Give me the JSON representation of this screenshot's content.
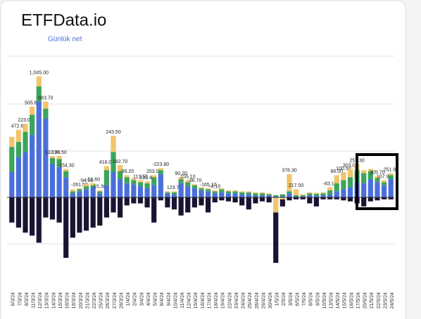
{
  "chart_data": {
    "type": "stacked_bar",
    "title": "ETFData.io",
    "subtitle": "Günlük net",
    "categories": [
      "6/3/24",
      "7/3/24",
      "8/3/24",
      "11/3/24",
      "12/3/24",
      "13/3/24",
      "14/3/24",
      "15/3/24",
      "18/3/24",
      "19/3/24",
      "20/3/24",
      "21/3/24",
      "22/3/24",
      "25/3/24",
      "26/3/24",
      "27/3/24",
      "28/3/24",
      "1/4/24",
      "2/4/24",
      "3/4/24",
      "4/4/24",
      "5/4/24",
      "8/4/24",
      "9/4/24",
      "10/4/24",
      "11/4/24",
      "12/4/24",
      "15/4/24",
      "16/4/24",
      "17/4/24",
      "18/4/24",
      "19/4/24",
      "22/4/24",
      "23/4/24",
      "24/4/24",
      "25/4/24",
      "26/4/24",
      "29/4/24",
      "30/4/24",
      "1/5/24",
      "2/5/24",
      "3/5/24",
      "6/5/24",
      "7/5/24",
      "8/5/24",
      "9/5/24",
      "10/5/24",
      "13/5/24",
      "14/5/24",
      "15/5/24",
      "16/5/24",
      "17/5/24",
      "20/5/24",
      "21/5/24",
      "22/5/24",
      "23/5/24",
      "24/5/24"
    ],
    "series": [
      {
        "color": "#4a6fdc",
        "values": [
          250,
          400,
          450,
          620,
          950,
          780,
          330,
          300,
          200,
          40,
          60,
          80,
          100,
          40,
          120,
          250,
          180,
          140,
          130,
          110,
          90,
          120,
          230,
          40,
          30,
          140,
          110,
          90,
          70,
          60,
          40,
          50,
          40,
          40,
          30,
          30,
          20,
          20,
          20,
          10,
          10,
          40,
          10,
          10,
          20,
          15,
          20,
          30,
          60,
          80,
          100,
          150,
          140,
          180,
          150,
          120,
          180
        ]
      },
      {
        "color": "#3aa55b",
        "values": [
          250,
          150,
          200,
          200,
          150,
          100,
          60,
          80,
          60,
          20,
          20,
          30,
          20,
          20,
          150,
          200,
          80,
          60,
          40,
          40,
          50,
          80,
          40,
          10,
          20,
          40,
          40,
          30,
          20,
          20,
          20,
          30,
          20,
          20,
          20,
          20,
          20,
          20,
          10,
          10,
          20,
          20,
          10,
          10,
          20,
          20,
          20,
          40,
          80,
          90,
          100,
          120,
          100,
          80,
          40,
          30,
          40
        ]
      },
      {
        "color": "#f2c46b",
        "values": [
          100,
          120,
          80,
          80,
          100,
          70,
          20,
          30,
          20,
          20,
          10,
          20,
          20,
          10,
          40,
          160,
          60,
          20,
          20,
          20,
          20,
          20,
          20,
          10,
          10,
          20,
          20,
          10,
          10,
          10,
          10,
          10,
          10,
          10,
          10,
          10,
          10,
          10,
          10,
          -150,
          -20,
          170,
          60,
          10,
          10,
          10,
          10,
          30,
          80,
          80,
          80,
          60,
          30,
          20,
          20,
          20,
          20
        ]
      },
      {
        "color": "#1a1433",
        "values": [
          -250,
          -300,
          -350,
          -380,
          -450,
          -200,
          -220,
          -250,
          -600,
          -400,
          -350,
          -330,
          -300,
          -280,
          -200,
          -150,
          -200,
          -80,
          -60,
          -60,
          -100,
          -250,
          -30,
          -100,
          -120,
          -180,
          -150,
          -100,
          -80,
          -150,
          -50,
          -30,
          -40,
          -50,
          -80,
          -120,
          -60,
          -40,
          -50,
          -500,
          -70,
          -30,
          -20,
          -20,
          -60,
          -90,
          -20,
          -20,
          -20,
          -30,
          -40,
          -60,
          -90,
          -40,
          -30,
          -20,
          -20
        ]
      }
    ],
    "net_values": [
      null,
      472.6,
      223,
      505.6,
      1045,
      683.7,
      132.7,
      198.5,
      -154.3,
      null,
      -261.5,
      -94,
      -51.6,
      15.3,
      418,
      243.5,
      182.7,
      -56.2,
      null,
      113.5,
      213.4,
      203,
      -223.8,
      null,
      123.7,
      90.2,
      155.1,
      -36.7,
      null,
      -165.1,
      -4.1,
      null,
      null,
      null,
      null,
      null,
      null,
      null,
      null,
      null,
      null,
      378.3,
      217,
      null,
      null,
      null,
      null,
      -83.1,
      66,
      100.5,
      303,
      257.3,
      null,
      null,
      305.7,
      107.9,
      251.9
    ],
    "net_value_labels": [
      null,
      "472.60",
      "223.00",
      "505.60",
      "1,045.00",
      "683.70",
      "132.70",
      "198.50",
      "-154.30",
      null,
      "-261.50",
      "-94.00",
      "-51.60",
      "15.30",
      "418.00",
      "243.50",
      "182.70",
      "-56.20",
      null,
      "113.50",
      "213.40",
      "203.00",
      "-223.80",
      null,
      "123.70",
      "90.20",
      "155.10",
      "-36.70",
      null,
      "-165.10",
      "-4.10",
      null,
      null,
      null,
      null,
      null,
      null,
      null,
      null,
      null,
      null,
      "378.30",
      "217.00",
      null,
      null,
      null,
      null,
      "-83.10",
      "66.00",
      "100.50",
      "303.00",
      "257.30",
      null,
      null,
      "305.70",
      "107.90",
      "251.90"
    ],
    "ylim": [
      -900,
      1400
    ]
  }
}
